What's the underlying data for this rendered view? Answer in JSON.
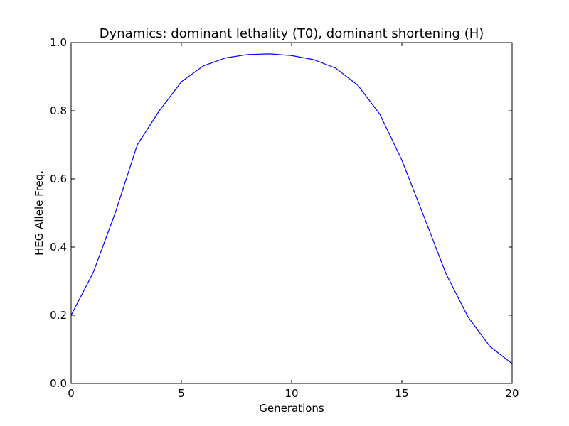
{
  "chart_data": {
    "type": "line",
    "title": "Dynamics: dominant lethality (T0), dominant shortening (H)",
    "xlabel": "Generations",
    "ylabel": "HEG Allele Freq.",
    "xlim": [
      0,
      20
    ],
    "ylim": [
      0.0,
      1.0
    ],
    "xticks": [
      0,
      5,
      10,
      15,
      20
    ],
    "xtick_labels": [
      "0",
      "5",
      "10",
      "15",
      "20"
    ],
    "yticks": [
      0.0,
      0.2,
      0.4,
      0.6,
      0.8,
      1.0
    ],
    "ytick_labels": [
      "0.0",
      "0.2",
      "0.4",
      "0.6",
      "0.8",
      "1.0"
    ],
    "grid": false,
    "line_color": "#0000ff",
    "series": [
      {
        "x": [
          0,
          1,
          2,
          3,
          4,
          5,
          6,
          7,
          8,
          9,
          10,
          11,
          12,
          13,
          14,
          15,
          16,
          17,
          18,
          19,
          20
        ],
        "values": [
          0.2,
          0.325,
          0.5,
          0.7,
          0.8,
          0.885,
          0.932,
          0.955,
          0.965,
          0.967,
          0.962,
          0.95,
          0.925,
          0.875,
          0.79,
          0.655,
          0.49,
          0.322,
          0.195,
          0.108,
          0.058
        ]
      }
    ]
  }
}
